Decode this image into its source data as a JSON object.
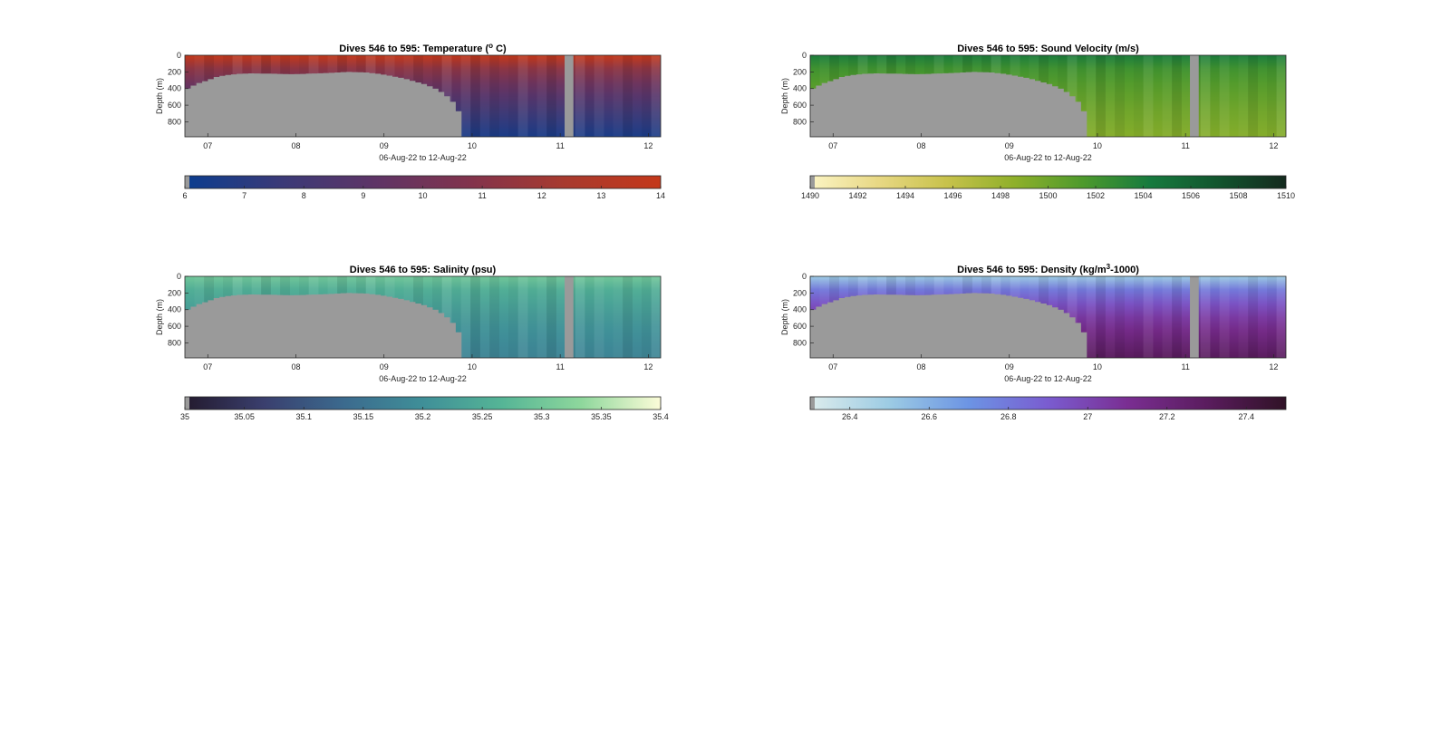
{
  "chart_data": [
    {
      "type": "heatmap",
      "title": "Dives 546 to 595: Temperature (°C)",
      "title_main": "Dives 546 to 595: Temperature (",
      "title_sup": "o",
      "title_end": " C)",
      "xlabel": "06-Aug-22 to 12-Aug-22",
      "ylabel": "Depth (m)",
      "x_ticks": [
        "07",
        "08",
        "09",
        "10",
        "11",
        "12"
      ],
      "x_range": [
        6.74,
        12.14
      ],
      "y_ticks": [
        "0",
        "200",
        "400",
        "600",
        "800"
      ],
      "y_range": [
        0,
        980
      ],
      "y_reversed": true,
      "colorbar": {
        "ticks": [
          "6",
          "7",
          "8",
          "9",
          "10",
          "11",
          "12",
          "13",
          "14"
        ],
        "range": [
          6,
          14
        ],
        "colors": [
          "#0b3d8f",
          "#3a3a78",
          "#5e3466",
          "#82334c",
          "#a83a2e",
          "#c4381a"
        ]
      },
      "surface_value": 14,
      "deep_value": 6.5
    },
    {
      "type": "heatmap",
      "title": "Dives 546 to 595: Sound Velocity (m/s)",
      "title_main": "Dives 546 to 595: Sound Velocity (m/s)",
      "title_sup": "",
      "title_end": "",
      "xlabel": "06-Aug-22 to 12-Aug-22",
      "ylabel": "Depth (m)",
      "x_ticks": [
        "07",
        "08",
        "09",
        "10",
        "11",
        "12"
      ],
      "x_range": [
        6.74,
        12.14
      ],
      "y_ticks": [
        "0",
        "200",
        "400",
        "600",
        "800"
      ],
      "y_range": [
        0,
        980
      ],
      "y_reversed": true,
      "colorbar": {
        "ticks": [
          "1490",
          "1492",
          "1494",
          "1496",
          "1498",
          "1500",
          "1502",
          "1504",
          "1506",
          "1508",
          "1510"
        ],
        "range": [
          1490,
          1510
        ],
        "colors": [
          "#fbf4c4",
          "#e8d884",
          "#c8c24c",
          "#8fb02a",
          "#4e9a2c",
          "#167a3e",
          "#12552e",
          "#142a1e"
        ]
      },
      "surface_value": 1504,
      "deep_value": 1499
    },
    {
      "type": "heatmap",
      "title": "Dives 546 to 595: Salinity (psu)",
      "title_main": "Dives 546 to 595: Salinity (psu)",
      "title_sup": "",
      "title_end": "",
      "xlabel": "06-Aug-22 to 12-Aug-22",
      "ylabel": "Depth (m)",
      "x_ticks": [
        "07",
        "08",
        "09",
        "10",
        "11",
        "12"
      ],
      "x_range": [
        6.74,
        12.14
      ],
      "y_ticks": [
        "0",
        "200",
        "400",
        "600",
        "800"
      ],
      "y_range": [
        0,
        980
      ],
      "y_reversed": true,
      "colorbar": {
        "ticks": [
          "35",
          "35.05",
          "35.1",
          "35.15",
          "35.2",
          "35.25",
          "35.3",
          "35.35",
          "35.4"
        ],
        "range": [
          35,
          35.4
        ],
        "colors": [
          "#231a2e",
          "#3a3f6e",
          "#3b6a8e",
          "#3f8f98",
          "#55b596",
          "#8ed79c",
          "#fcfcd8"
        ]
      },
      "surface_value": 35.3,
      "deep_value": 35.18
    },
    {
      "type": "heatmap",
      "title": "Dives 546 to 595: Density (kg/m3-1000)",
      "title_main": "Dives 546 to 595: Density (kg/m",
      "title_sup": "3",
      "title_end": "-1000)",
      "xlabel": "06-Aug-22 to 12-Aug-22",
      "ylabel": "Depth (m)",
      "x_ticks": [
        "07",
        "08",
        "09",
        "10",
        "11",
        "12"
      ],
      "x_range": [
        6.74,
        12.14
      ],
      "y_ticks": [
        "0",
        "200",
        "400",
        "600",
        "800"
      ],
      "y_range": [
        0,
        980
      ],
      "y_reversed": true,
      "colorbar": {
        "ticks": [
          "26.4",
          "26.6",
          "26.8",
          "27",
          "27.2",
          "27.4"
        ],
        "range": [
          26.3,
          27.5
        ],
        "colors": [
          "#dcecec",
          "#9ccbe4",
          "#6c94e4",
          "#7a5cd0",
          "#7a2e92",
          "#5a1c5e",
          "#301226"
        ]
      },
      "surface_value": 26.5,
      "deep_value": 27.3
    }
  ],
  "no_data_color": "#9a9a9a",
  "seafloor_profile": [
    [
      6.74,
      400
    ],
    [
      6.85,
      340
    ],
    [
      6.97,
      300
    ],
    [
      7.07,
      260
    ],
    [
      7.18,
      240
    ],
    [
      7.3,
      225
    ],
    [
      7.45,
      218
    ],
    [
      7.7,
      222
    ],
    [
      7.95,
      228
    ],
    [
      8.2,
      218
    ],
    [
      8.4,
      210
    ],
    [
      8.55,
      200
    ],
    [
      8.75,
      205
    ],
    [
      8.9,
      222
    ],
    [
      9.05,
      248
    ],
    [
      9.2,
      280
    ],
    [
      9.3,
      310
    ],
    [
      9.42,
      345
    ],
    [
      9.55,
      400
    ],
    [
      9.65,
      460
    ],
    [
      9.75,
      560
    ],
    [
      9.83,
      700
    ],
    [
      9.88,
      980
    ]
  ],
  "data_gap": [
    11.05,
    11.15
  ]
}
